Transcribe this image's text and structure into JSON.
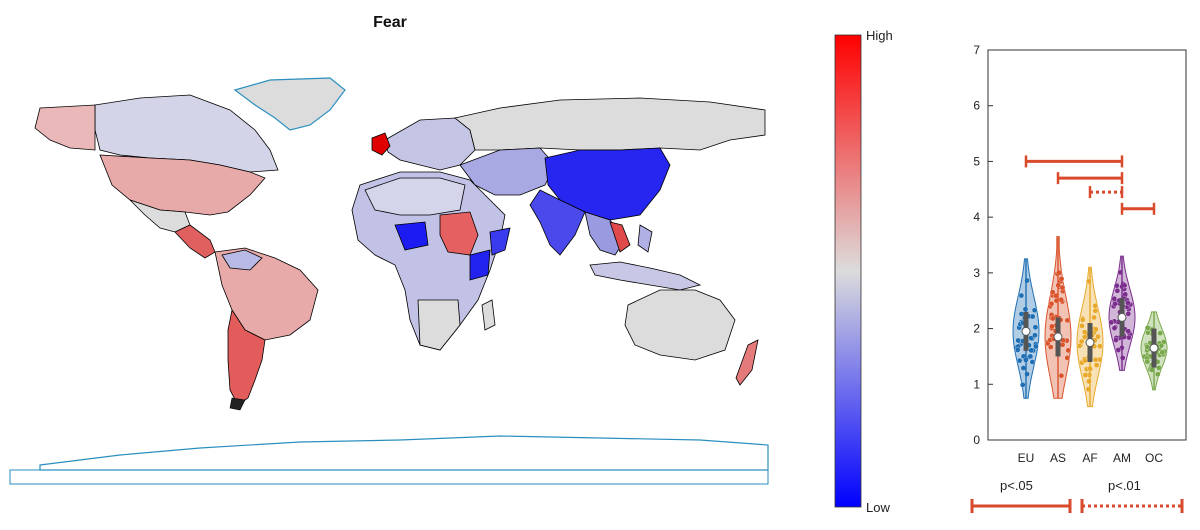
{
  "map": {
    "title": "Fear",
    "colors": {
      "high": "#ff0000",
      "mid": "#dcdcdc",
      "low": "#0000ff",
      "coast": "#2a8fbf"
    }
  },
  "colorbar": {
    "high_label": "High",
    "low_label": "Low"
  },
  "legend": {
    "p05": "p<.05",
    "p01": "p<.01",
    "color": "#d9492b"
  },
  "chart_data": [
    {
      "type": "choropleth",
      "title": "Fear",
      "scale": {
        "low": "Low",
        "high": "High"
      },
      "regions": [
        {
          "name": "North America (Canada)",
          "level": 0.45
        },
        {
          "name": "United States",
          "level": 0.62
        },
        {
          "name": "Alaska",
          "level": 0.6
        },
        {
          "name": "Central America",
          "level": 0.72
        },
        {
          "name": "South America (north)",
          "level": 0.66
        },
        {
          "name": "Chile / Argentina",
          "level": 0.74
        },
        {
          "name": "United Kingdom",
          "level": 0.95
        },
        {
          "name": "Russia",
          "level": 0.5
        },
        {
          "name": "China",
          "level": 0.08
        },
        {
          "name": "India",
          "level": 0.18
        },
        {
          "name": "Africa (mixed)",
          "level": 0.35
        },
        {
          "name": "Sudan",
          "level": 0.78
        },
        {
          "name": "Australia",
          "level": 0.48
        },
        {
          "name": "New Zealand",
          "level": 0.7
        }
      ]
    },
    {
      "type": "violin",
      "categories": [
        "EU",
        "AS",
        "AF",
        "AM",
        "OC"
      ],
      "colors": [
        "#1f6fb4",
        "#d9532b",
        "#e8a92a",
        "#7b2d8e",
        "#78a84a"
      ],
      "ylim": [
        0,
        7
      ],
      "yticks": [
        0,
        1,
        2,
        3,
        4,
        5,
        6,
        7
      ],
      "series": [
        {
          "name": "EU",
          "median": 1.95,
          "min": 0.75,
          "max": 3.25
        },
        {
          "name": "AS",
          "median": 1.85,
          "min": 0.75,
          "max": 3.65
        },
        {
          "name": "AF",
          "median": 1.75,
          "min": 0.6,
          "max": 3.1
        },
        {
          "name": "AM",
          "median": 2.2,
          "min": 1.25,
          "max": 3.3
        },
        {
          "name": "OC",
          "median": 1.65,
          "min": 0.9,
          "max": 2.3
        }
      ],
      "significance": [
        {
          "from": "EU",
          "to": "AM",
          "y": 5.0,
          "level": "p<.05"
        },
        {
          "from": "AS",
          "to": "AM",
          "y": 4.7,
          "level": "p<.05"
        },
        {
          "from": "AF",
          "to": "AM",
          "y": 4.45,
          "level": "p<.01"
        },
        {
          "from": "AM",
          "to": "OC",
          "y": 4.15,
          "level": "p<.05"
        }
      ]
    }
  ]
}
